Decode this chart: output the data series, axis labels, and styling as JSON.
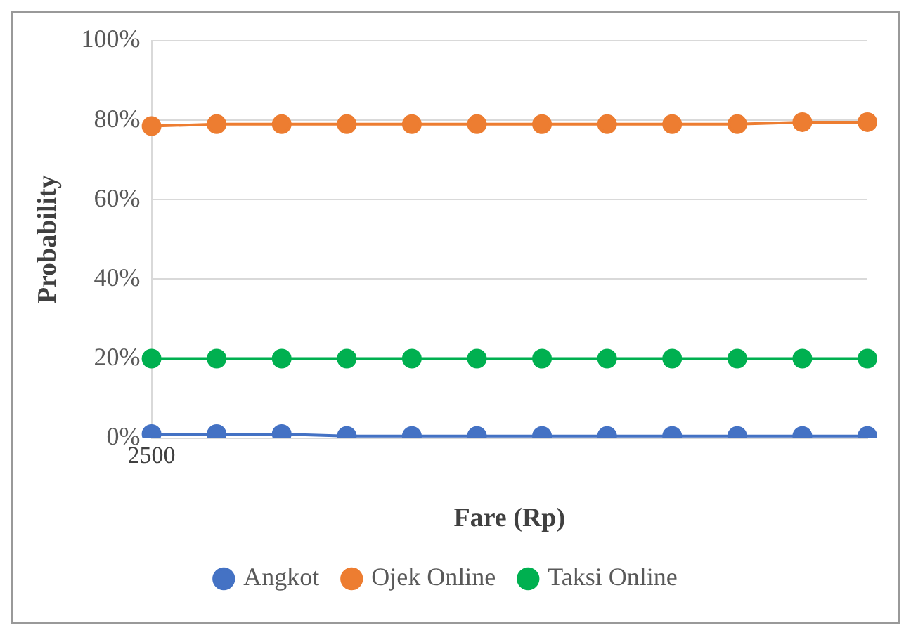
{
  "chart_data": {
    "type": "line",
    "xlabel": "Fare (Rp)",
    "ylabel": "Probability",
    "categories": [
      "2500",
      null,
      null,
      null,
      null,
      null,
      null,
      null,
      null,
      null,
      null,
      null
    ],
    "series": [
      {
        "name": "Angkot",
        "color": "#4472c4",
        "values": [
          1,
          1,
          1,
          0.5,
          0.5,
          0.5,
          0.5,
          0.5,
          0.5,
          0.5,
          0.5,
          0.5
        ]
      },
      {
        "name": "Ojek Online",
        "color": "#ed7d31",
        "values": [
          78.5,
          79,
          79,
          79,
          79,
          79,
          79,
          79,
          79,
          79,
          79.5,
          79.5
        ]
      },
      {
        "name": "Taksi Online",
        "color": "#00b050",
        "values": [
          20,
          20,
          20,
          20,
          20,
          20,
          20,
          20,
          20,
          20,
          20,
          20
        ]
      }
    ],
    "ylim": [
      0,
      100
    ],
    "yticks": [
      {
        "value": 0,
        "label": "0%"
      },
      {
        "value": 20,
        "label": "20%"
      },
      {
        "value": 40,
        "label": "40%"
      },
      {
        "value": 60,
        "label": "60%"
      },
      {
        "value": 80,
        "label": "80%"
      },
      {
        "value": 100,
        "label": "100%"
      }
    ],
    "grid": "y",
    "legend": "bottom",
    "marker": "circle",
    "line_style": "solid"
  }
}
